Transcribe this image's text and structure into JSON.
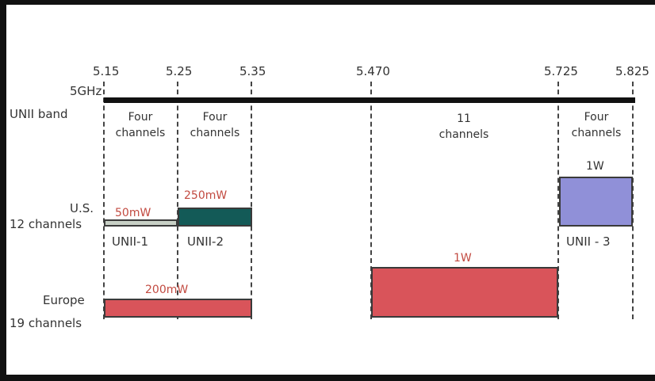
{
  "axis": {
    "row_label_1": "5GHz",
    "row_label_2": "UNII band",
    "ticks": [
      "5.15",
      "5.25",
      "5.35",
      "5.470",
      "5.725",
      "5.825"
    ]
  },
  "channel_groups": [
    {
      "line1": "Four",
      "line2": "channels"
    },
    {
      "line1": "Four",
      "line2": "channels"
    },
    {
      "line1": "11",
      "line2": "channels"
    },
    {
      "line1": "Four",
      "line2": "channels"
    }
  ],
  "us": {
    "label_1": "U.S.",
    "label_2": "12 channels",
    "power_1": "50mW",
    "power_2": "250mW",
    "power_3": "1W",
    "band_1": "UNII-1",
    "band_2": "UNII-2",
    "band_3": "UNII - 3"
  },
  "europe": {
    "label_1": "Europe",
    "label_2": "19 channels",
    "power_1": "200mW",
    "power_2": "1W"
  },
  "colors": {
    "us_unii1": "#c8d0c6",
    "us_unii2": "#135a57",
    "us_unii3": "#9090d8",
    "europe": "#d9545a"
  }
}
